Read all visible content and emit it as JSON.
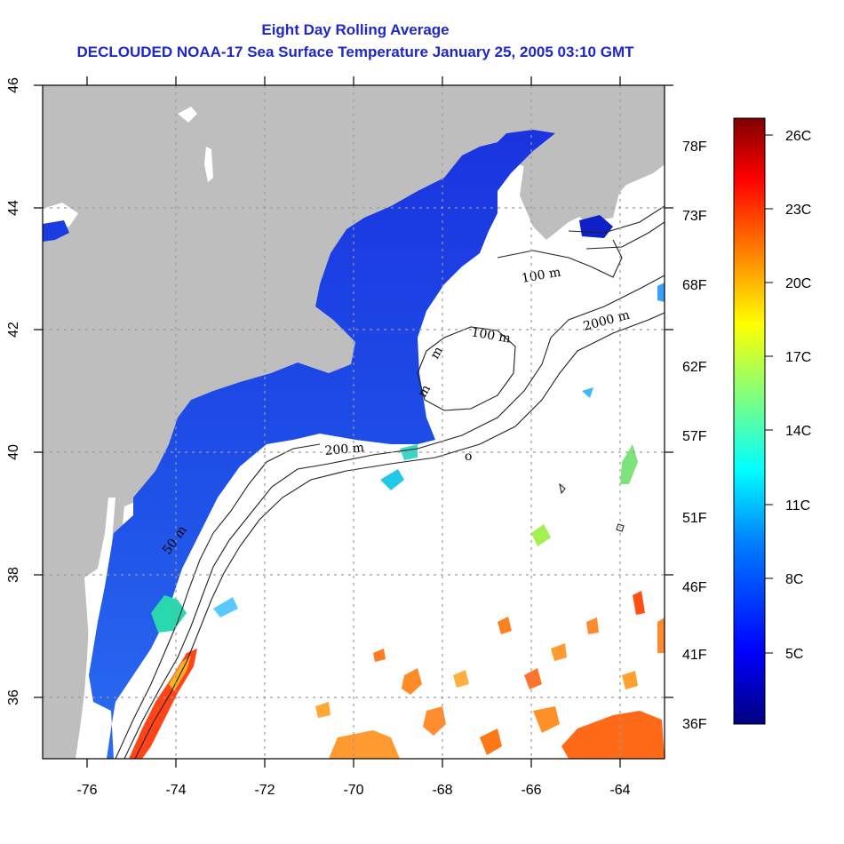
{
  "title": {
    "line1": "Eight Day Rolling Average",
    "line2": "DECLOUDED NOAA-17 Sea Surface Temperature January 25, 2005 03:10 GMT"
  },
  "map": {
    "lon_range": [
      -77,
      -63
    ],
    "lat_range": [
      35,
      46
    ],
    "x_ticks": [
      "-76",
      "-74",
      "-72",
      "-70",
      "-68",
      "-66",
      "-64"
    ],
    "y_ticks": [
      "36",
      "38",
      "40",
      "42",
      "44",
      "46"
    ],
    "gridlines": "dotted",
    "land_color": "#bebebe",
    "no_data_color": "#ffffff",
    "contour_labels": [
      "50 m",
      "100 m",
      "100 m",
      "200 m",
      "2000 m",
      "m",
      "m",
      "o"
    ]
  },
  "colorbar": {
    "palette": [
      "#00007f",
      "#0000ff",
      "#007fff",
      "#00ffff",
      "#7fff7f",
      "#ffff00",
      "#ff7f00",
      "#ff0000",
      "#7f0000"
    ],
    "celsius_labels": [
      "26C",
      "23C",
      "20C",
      "17C",
      "14C",
      "11C",
      "8C",
      "5C"
    ],
    "fahrenheit_labels": [
      "78F",
      "73F",
      "68F",
      "62F",
      "57F",
      "51F",
      "46F",
      "41F",
      "36F"
    ]
  }
}
